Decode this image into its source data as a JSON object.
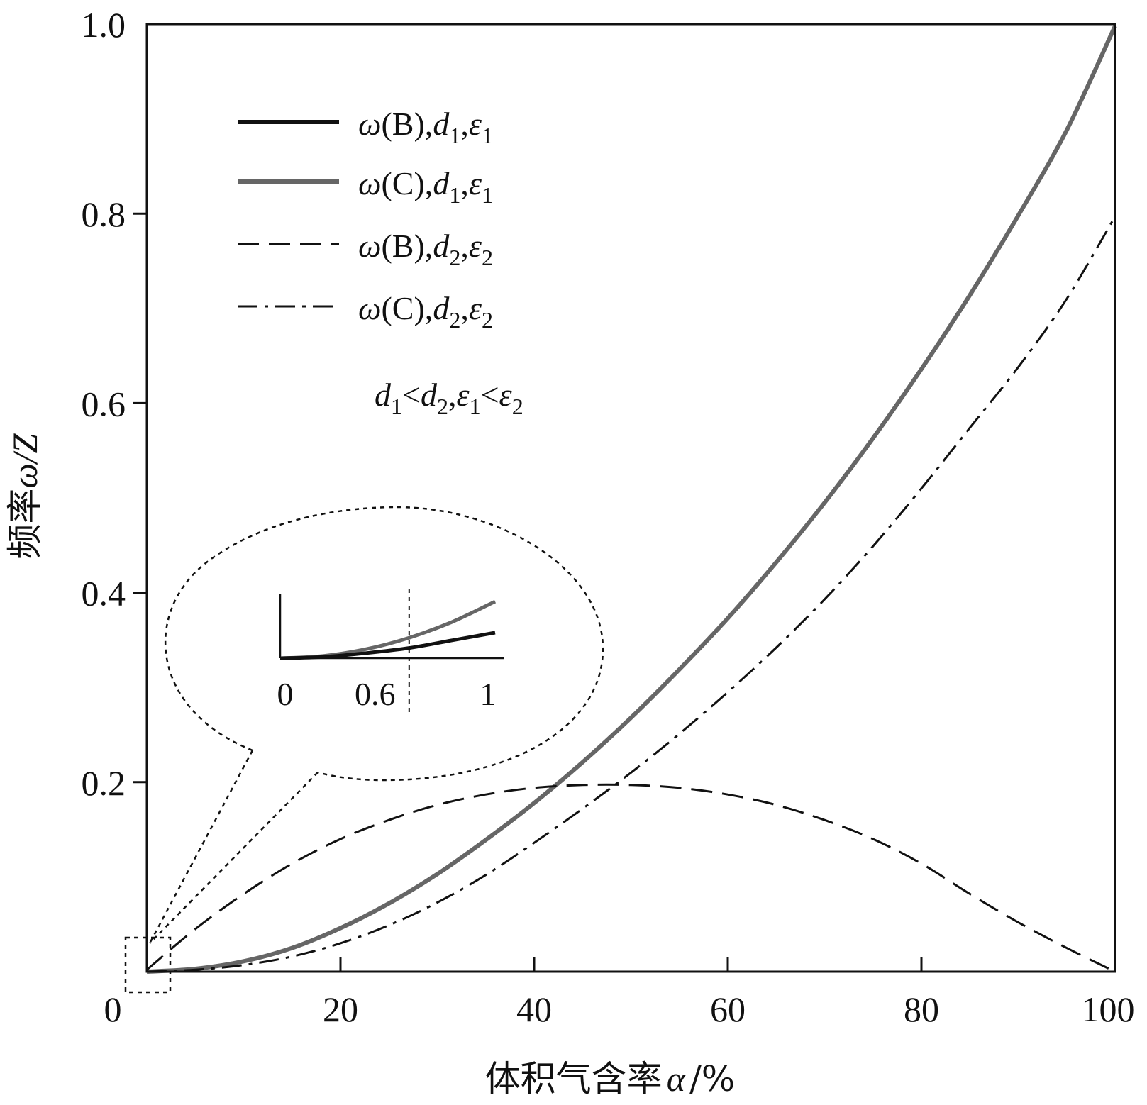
{
  "chart_data": {
    "type": "line",
    "xlabel": "体积气含率",
    "xlabel_symbol": "α",
    "xlabel_unit": "/%",
    "ylabel": "频率",
    "ylabel_symbol": "ω/Z",
    "xlim": [
      0,
      100
    ],
    "ylim": [
      0,
      1.0
    ],
    "x_ticks": [
      0,
      20,
      40,
      60,
      80,
      100
    ],
    "x_tick_labels": [
      "0",
      "20",
      "40",
      "60",
      "80",
      "100"
    ],
    "y_ticks": [
      0.2,
      0.4,
      0.6,
      0.8,
      1.0
    ],
    "y_tick_labels": [
      "0.2",
      "0.4",
      "0.6",
      "0.8",
      "1.0"
    ],
    "grid": false,
    "legend_position": "top-left",
    "series": [
      {
        "key": "B1",
        "legend": {
          "main": "ω(B),",
          "d": "d",
          "d_sub": "1",
          "sep": ",",
          "e": "ε",
          "e_sub": "1"
        },
        "style": "solid",
        "color": "#111111",
        "x": [
          0,
          0.2,
          0.4,
          0.6,
          0.8,
          1.0
        ],
        "y": [
          0,
          5e-05,
          0.0002,
          0.0004,
          0.0007,
          0.001
        ]
      },
      {
        "key": "C1",
        "legend": {
          "main": "ω(C),",
          "d": "d",
          "d_sub": "1",
          "sep": ",",
          "e": "ε",
          "e_sub": "1"
        },
        "style": "solid",
        "color": "#666666",
        "x": [
          0,
          5,
          10,
          15,
          20,
          25,
          30,
          35,
          40,
          45,
          50,
          55,
          60,
          65,
          70,
          75,
          80,
          85,
          90,
          95,
          100
        ],
        "y": [
          0,
          0.003,
          0.011,
          0.025,
          0.046,
          0.072,
          0.103,
          0.139,
          0.178,
          0.221,
          0.268,
          0.319,
          0.373,
          0.432,
          0.495,
          0.563,
          0.636,
          0.714,
          0.798,
          0.888,
          0.998
        ]
      },
      {
        "key": "B2",
        "legend": {
          "main": "ω(B),",
          "d": "d",
          "d_sub": "2",
          "sep": ",",
          "e": "ε",
          "e_sub": "2"
        },
        "style": "dashed",
        "color": "#111111",
        "x": [
          0,
          5,
          10,
          15,
          20,
          25,
          30,
          35,
          40,
          45,
          50,
          55,
          60,
          65,
          70,
          75,
          80,
          85,
          90,
          95,
          100
        ],
        "y": [
          0.002,
          0.045,
          0.082,
          0.114,
          0.14,
          0.16,
          0.176,
          0.187,
          0.194,
          0.197,
          0.197,
          0.194,
          0.187,
          0.176,
          0.16,
          0.14,
          0.114,
          0.082,
          0.052,
          0.025,
          0.0
        ]
      },
      {
        "key": "C2",
        "legend": {
          "main": "ω(C),",
          "d": "d",
          "d_sub": "2",
          "sep": ",",
          "e": "ε",
          "e_sub": "2"
        },
        "style": "dashdot",
        "color": "#111111",
        "x": [
          0,
          5,
          10,
          15,
          20,
          25,
          30,
          35,
          40,
          45,
          50,
          55,
          60,
          65,
          70,
          75,
          80,
          85,
          90,
          95,
          100
        ],
        "y": [
          0,
          0.002,
          0.007,
          0.016,
          0.03,
          0.049,
          0.073,
          0.102,
          0.136,
          0.172,
          0.21,
          0.251,
          0.295,
          0.342,
          0.393,
          0.449,
          0.51,
          0.574,
          0.638,
          0.71,
          0.797
        ]
      }
    ],
    "annotation": {
      "d1": "d",
      "s1": "1",
      "lt1": "<",
      "d2": "d",
      "s2": "2",
      "comma": ",",
      "e1": "ε",
      "s3": "1",
      "lt2": "<",
      "e2": "ε",
      "s4": "2"
    },
    "inset": {
      "x_tick_labels": [
        "0",
        "0.6",
        "1"
      ],
      "marker_x": 0.6
    }
  }
}
